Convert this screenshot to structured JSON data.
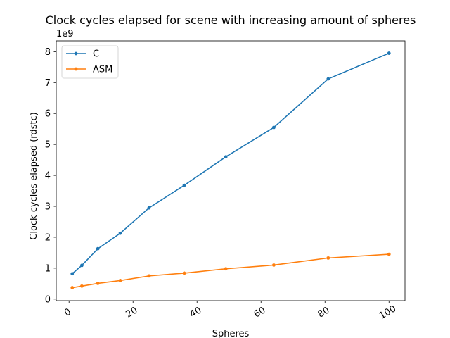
{
  "chart_data": {
    "type": "line",
    "title": "Clock cycles elapsed for scene with increasing amount of spheres",
    "xlabel": "Spheres",
    "ylabel": "Clock cycles elapsed (rdstc)",
    "y_offset_text": "1e9",
    "x": [
      1,
      4,
      9,
      16,
      25,
      36,
      49,
      64,
      81,
      100
    ],
    "series": [
      {
        "name": "C",
        "color": "#1f77b4",
        "values": [
          0.82,
          1.09,
          1.63,
          2.13,
          2.95,
          3.68,
          4.6,
          5.55,
          7.12,
          7.95
        ]
      },
      {
        "name": "ASM",
        "color": "#ff7f0e",
        "values": [
          0.37,
          0.42,
          0.51,
          0.6,
          0.75,
          0.84,
          0.98,
          1.1,
          1.33,
          1.45
        ]
      }
    ],
    "xlim": [
      -4.0,
      105.0
    ],
    "ylim": [
      -0.05,
      8.35
    ],
    "xticks": [
      0,
      20,
      40,
      60,
      80,
      100
    ],
    "xtick_labels": [
      "0",
      "20",
      "40",
      "60",
      "80",
      "100"
    ],
    "yticks": [
      0,
      1,
      2,
      3,
      4,
      5,
      6,
      7,
      8
    ],
    "ytick_labels": [
      "0",
      "1",
      "2",
      "3",
      "4",
      "5",
      "6",
      "7",
      "8"
    ],
    "grid": false,
    "legend_position": "top-left"
  }
}
